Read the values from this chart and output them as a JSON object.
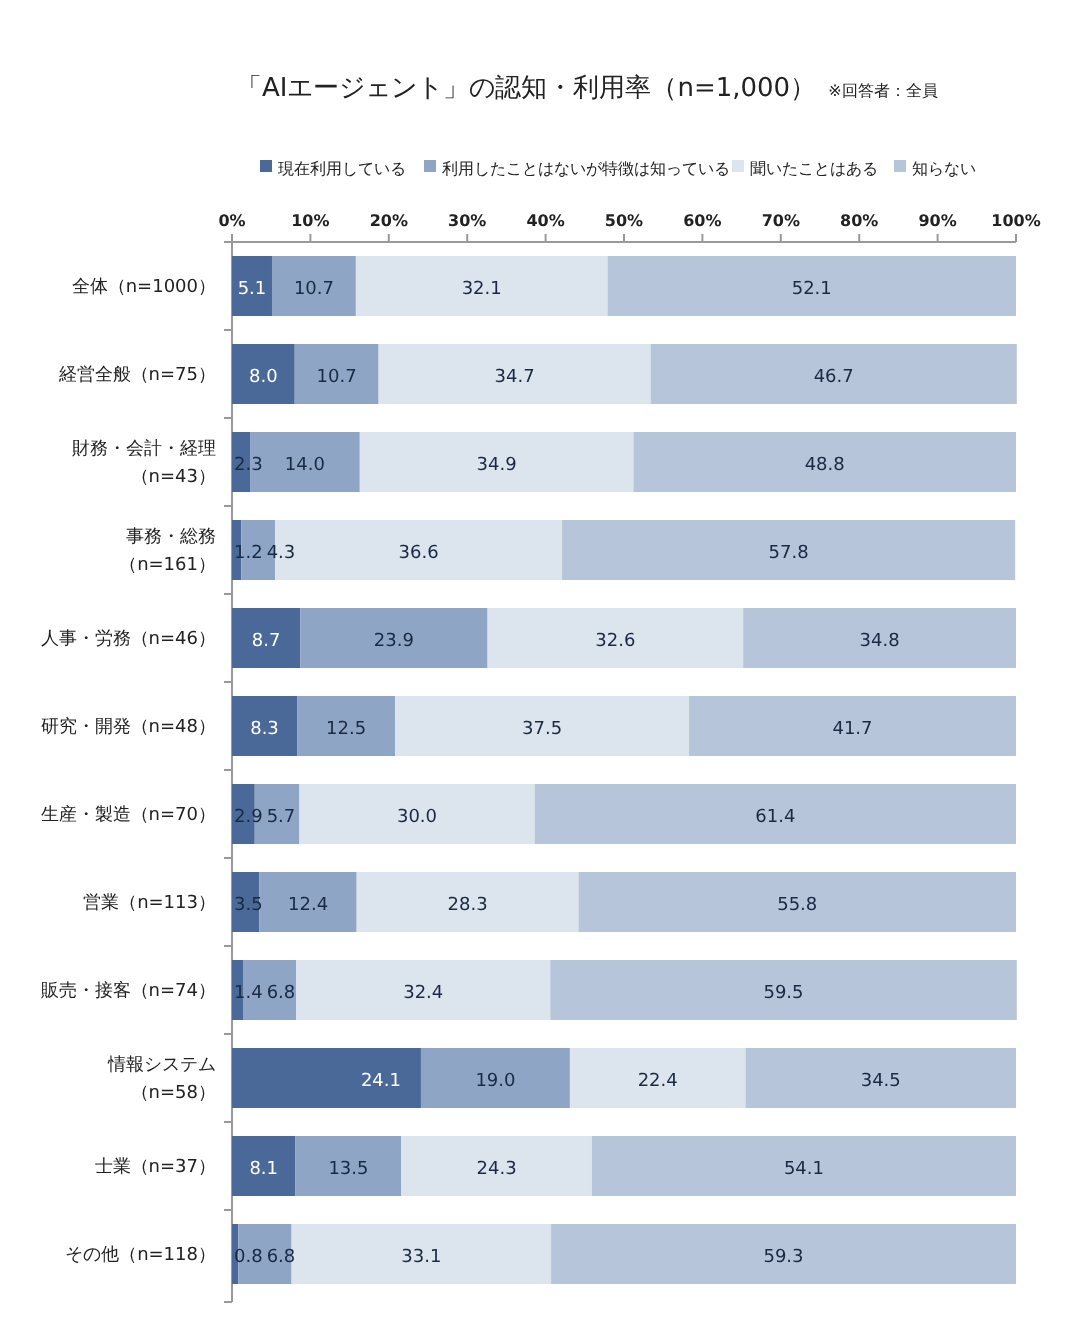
{
  "chart_data": {
    "type": "bar",
    "orientation": "horizontal",
    "stacked": true,
    "title": "「AIエージェント」の認知・利用率（n=1,000）",
    "subtitle": "※回答者：全員",
    "categories": [
      "全体（n=1000）",
      "経営全般（n=75）",
      "財務・会計・経理（n=43）",
      "事務・総務（n=161）",
      "人事・労務（n=46）",
      "研究・開発（n=48）",
      "生産・製造（n=70）",
      "営業（n=113）",
      "販売・接客（n=74）",
      "情報システム（n=58）",
      "士業（n=37）",
      "その他（n=118）"
    ],
    "series": [
      {
        "name": "現在利用している",
        "color": "#4a6998",
        "values": [
          5.1,
          8.0,
          2.3,
          1.2,
          8.7,
          8.3,
          2.9,
          3.5,
          1.4,
          24.1,
          8.1,
          0.8
        ],
        "value_labels": [
          "5.1",
          "8.0",
          "2.3",
          "1.2",
          "8.7",
          "8.3",
          "2.9",
          "3.5",
          "1.4",
          "24.1",
          "8.1",
          "0.8"
        ]
      },
      {
        "name": "利用したことはないが特徴は知っている",
        "color": "#8ea5c6",
        "values": [
          10.7,
          10.7,
          14.0,
          4.3,
          23.9,
          12.5,
          5.7,
          12.4,
          6.8,
          19.0,
          13.5,
          6.8
        ],
        "value_labels": [
          "10.7",
          "10.7",
          "14.0",
          "4.3",
          "23.9",
          "12.5",
          "5.7",
          "12.4",
          "6.8",
          "19.0",
          "13.5",
          "6.8"
        ]
      },
      {
        "name": "聞いたことはある",
        "color": "#dce4ee",
        "values": [
          32.1,
          34.7,
          34.9,
          36.6,
          32.6,
          37.5,
          30.0,
          28.3,
          32.4,
          22.4,
          24.3,
          33.1
        ],
        "value_labels": [
          "32.1",
          "34.7",
          "34.9",
          "36.6",
          "32.6",
          "37.5",
          "30.0",
          "28.3",
          "32.4",
          "22.4",
          "24.3",
          "33.1"
        ]
      },
      {
        "name": "知らない",
        "color": "#b7c5da",
        "values": [
          52.1,
          46.7,
          48.8,
          57.8,
          34.8,
          41.7,
          61.4,
          55.8,
          59.5,
          34.5,
          54.1,
          59.3
        ],
        "value_labels": [
          "52.1",
          "46.7",
          "48.8",
          "57.8",
          "34.8",
          "41.7",
          "61.4",
          "55.8",
          "59.5",
          "34.5",
          "54.1",
          "59.3"
        ]
      }
    ],
    "xlim": [
      0,
      100
    ],
    "xticks": [
      {
        "value": 0,
        "label": "0%"
      },
      {
        "value": 10,
        "label": "10%"
      },
      {
        "value": 20,
        "label": "20%"
      },
      {
        "value": 30,
        "label": "30%"
      },
      {
        "value": 40,
        "label": "40%"
      },
      {
        "value": 50,
        "label": "50%"
      },
      {
        "value": 60,
        "label": "60%"
      },
      {
        "value": 70,
        "label": "70%"
      },
      {
        "value": 80,
        "label": "80%"
      },
      {
        "value": 90,
        "label": "90%"
      },
      {
        "value": 100,
        "label": "100%"
      }
    ],
    "legend": "top",
    "grid": false
  }
}
